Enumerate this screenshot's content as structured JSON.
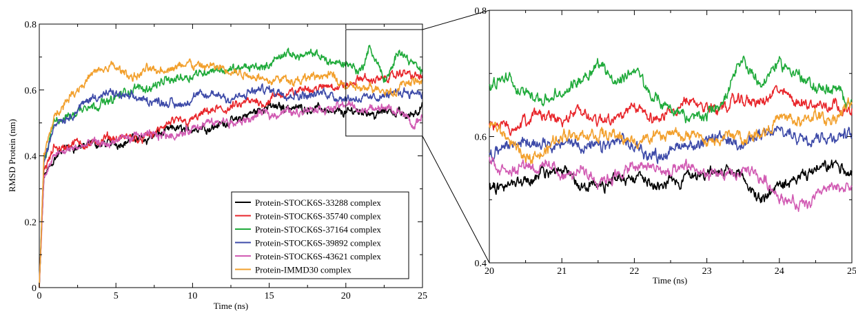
{
  "figure": {
    "left_panel": {
      "xlabel": "Time (ns)",
      "ylabel": "RMSD Protein (nm)",
      "xlim": [
        0,
        25
      ],
      "ylim": [
        0,
        0.8
      ],
      "xticks": [
        "0",
        "5",
        "10",
        "15",
        "20",
        "25"
      ],
      "yticks": [
        "0",
        "0.2",
        "0.4",
        "0.6",
        "0.8"
      ]
    },
    "right_panel": {
      "xlabel": "Time (ns)",
      "xlim": [
        20,
        25
      ],
      "ylim": [
        0.4,
        0.8
      ],
      "xticks": [
        "20",
        "21",
        "22",
        "23",
        "24",
        "25"
      ],
      "yticks": [
        "0.4",
        "0.6",
        "0.8"
      ]
    },
    "zoom_box": {
      "x_range": [
        20,
        25
      ],
      "y_range": [
        0.46,
        0.8
      ]
    },
    "legend_placement": "lower-right"
  },
  "chart_data": [
    {
      "type": "line",
      "xlabel": "Time (ns)",
      "ylabel": "RMSD Protein (nm)",
      "xlim": [
        0,
        25
      ],
      "ylim": [
        0,
        0.8
      ],
      "grid": false,
      "legend_placement": "lower-right",
      "series": [
        {
          "name": "Protein-STOCK6S-33288 complex",
          "color": "#000000",
          "x": [
            0,
            0.3,
            1,
            2,
            3,
            4,
            5,
            7,
            9,
            11,
            13,
            15,
            17,
            19,
            20,
            21,
            22,
            23,
            24,
            25
          ],
          "y": [
            0,
            0.33,
            0.4,
            0.42,
            0.43,
            0.43,
            0.44,
            0.46,
            0.48,
            0.49,
            0.51,
            0.55,
            0.55,
            0.54,
            0.53,
            0.54,
            0.53,
            0.54,
            0.52,
            0.55
          ]
        },
        {
          "name": "Protein-STOCK6S-35740 complex",
          "color": "#e8262b",
          "x": [
            0,
            0.3,
            1,
            2,
            3,
            4,
            5,
            6,
            7,
            9,
            11,
            13,
            15,
            17,
            19,
            20,
            21,
            22,
            23,
            24,
            25
          ],
          "y": [
            0,
            0.35,
            0.42,
            0.43,
            0.44,
            0.44,
            0.45,
            0.45,
            0.46,
            0.5,
            0.53,
            0.55,
            0.57,
            0.6,
            0.61,
            0.61,
            0.63,
            0.63,
            0.64,
            0.65,
            0.64
          ]
        },
        {
          "name": "Protein-STOCK6S-37164 complex",
          "color": "#1faa3a",
          "x": [
            0,
            0.3,
            1,
            2,
            3,
            4,
            5,
            7,
            9,
            11,
            13,
            15,
            16,
            17,
            18,
            19,
            20,
            21,
            21.5,
            22,
            22.5,
            23,
            23.5,
            24,
            25
          ],
          "y": [
            0,
            0.38,
            0.5,
            0.52,
            0.55,
            0.56,
            0.58,
            0.61,
            0.64,
            0.66,
            0.66,
            0.68,
            0.7,
            0.71,
            0.7,
            0.69,
            0.68,
            0.66,
            0.72,
            0.69,
            0.63,
            0.66,
            0.72,
            0.7,
            0.66
          ]
        },
        {
          "name": "Protein-STOCK6S-39892 complex",
          "color": "#3d4aa8",
          "x": [
            0,
            0.3,
            1,
            2,
            3,
            4,
            5,
            7,
            9,
            11,
            13,
            15,
            17,
            19,
            20,
            21,
            22,
            23,
            24,
            25
          ],
          "y": [
            0,
            0.38,
            0.5,
            0.52,
            0.56,
            0.59,
            0.58,
            0.57,
            0.56,
            0.58,
            0.58,
            0.6,
            0.59,
            0.59,
            0.58,
            0.58,
            0.58,
            0.59,
            0.6,
            0.6
          ]
        },
        {
          "name": "Protein-STOCK6S-43621 complex",
          "color": "#d15bb3",
          "x": [
            0,
            0.3,
            1,
            2,
            3,
            4,
            5,
            7,
            9,
            11,
            13,
            15,
            17,
            19,
            20,
            21,
            22,
            23,
            24,
            24.3,
            25
          ],
          "y": [
            0,
            0.33,
            0.4,
            0.42,
            0.43,
            0.43,
            0.44,
            0.46,
            0.47,
            0.49,
            0.5,
            0.53,
            0.54,
            0.54,
            0.56,
            0.54,
            0.54,
            0.54,
            0.52,
            0.48,
            0.52
          ]
        },
        {
          "name": "Protein-IMMD30 complex",
          "color": "#f2a02d",
          "x": [
            0,
            0.3,
            1,
            2,
            3,
            4,
            5,
            6,
            7,
            9,
            11,
            13,
            15,
            17,
            19,
            20,
            21,
            22,
            23,
            24,
            25
          ],
          "y": [
            0,
            0.4,
            0.52,
            0.58,
            0.63,
            0.66,
            0.67,
            0.64,
            0.66,
            0.67,
            0.67,
            0.65,
            0.64,
            0.63,
            0.64,
            0.62,
            0.6,
            0.6,
            0.6,
            0.62,
            0.63
          ]
        }
      ]
    },
    {
      "type": "line",
      "xlabel": "Time (ns)",
      "xlim": [
        20,
        25
      ],
      "ylim": [
        0.4,
        0.8
      ],
      "grid": false,
      "series": [
        {
          "name": "Protein-STOCK6S-33288 complex",
          "color": "#000000",
          "x": [
            20,
            20.25,
            20.5,
            20.75,
            21,
            21.25,
            21.5,
            21.75,
            22,
            22.25,
            22.5,
            22.75,
            23,
            23.25,
            23.5,
            23.75,
            24,
            24.25,
            24.5,
            24.75,
            25
          ],
          "y": [
            0.52,
            0.53,
            0.53,
            0.54,
            0.54,
            0.53,
            0.52,
            0.53,
            0.54,
            0.53,
            0.53,
            0.54,
            0.55,
            0.54,
            0.53,
            0.5,
            0.52,
            0.53,
            0.54,
            0.55,
            0.55
          ]
        },
        {
          "name": "Protein-STOCK6S-35740 complex",
          "color": "#e8262b",
          "x": [
            20,
            20.25,
            20.5,
            20.75,
            21,
            21.25,
            21.5,
            21.75,
            22,
            22.25,
            22.5,
            22.75,
            23,
            23.25,
            23.5,
            23.75,
            24,
            24.25,
            24.5,
            24.75,
            25
          ],
          "y": [
            0.62,
            0.61,
            0.63,
            0.64,
            0.63,
            0.64,
            0.63,
            0.64,
            0.64,
            0.63,
            0.64,
            0.65,
            0.64,
            0.65,
            0.66,
            0.65,
            0.67,
            0.66,
            0.65,
            0.66,
            0.64
          ]
        },
        {
          "name": "Protein-STOCK6S-37164 complex",
          "color": "#1faa3a",
          "x": [
            20,
            20.25,
            20.5,
            20.75,
            21,
            21.25,
            21.5,
            21.75,
            22,
            22.25,
            22.5,
            22.75,
            23,
            23.25,
            23.5,
            23.75,
            24,
            24.25,
            24.5,
            24.75,
            25
          ],
          "y": [
            0.68,
            0.69,
            0.67,
            0.66,
            0.66,
            0.69,
            0.72,
            0.69,
            0.71,
            0.66,
            0.64,
            0.63,
            0.64,
            0.66,
            0.72,
            0.68,
            0.72,
            0.7,
            0.68,
            0.67,
            0.66
          ]
        },
        {
          "name": "Protein-STOCK6S-39892 complex",
          "color": "#3d4aa8",
          "x": [
            20,
            20.25,
            20.5,
            20.75,
            21,
            21.25,
            21.5,
            21.75,
            22,
            22.25,
            22.5,
            22.75,
            23,
            23.25,
            23.5,
            23.75,
            24,
            24.25,
            24.5,
            24.75,
            25
          ],
          "y": [
            0.57,
            0.58,
            0.59,
            0.6,
            0.59,
            0.59,
            0.58,
            0.59,
            0.58,
            0.57,
            0.58,
            0.59,
            0.59,
            0.6,
            0.59,
            0.6,
            0.61,
            0.6,
            0.61,
            0.6,
            0.6
          ]
        },
        {
          "name": "Protein-STOCK6S-43621 complex",
          "color": "#d15bb3",
          "x": [
            20,
            20.25,
            20.5,
            20.75,
            21,
            21.25,
            21.5,
            21.75,
            22,
            22.25,
            22.5,
            22.75,
            23,
            23.25,
            23.5,
            23.75,
            24,
            24.25,
            24.5,
            24.75,
            25
          ],
          "y": [
            0.56,
            0.55,
            0.56,
            0.55,
            0.54,
            0.54,
            0.53,
            0.54,
            0.55,
            0.55,
            0.54,
            0.55,
            0.54,
            0.54,
            0.54,
            0.53,
            0.51,
            0.49,
            0.51,
            0.52,
            0.52
          ]
        },
        {
          "name": "Protein-IMMD30 complex",
          "color": "#f2a02d",
          "x": [
            20,
            20.25,
            20.5,
            20.75,
            21,
            21.25,
            21.5,
            21.75,
            22,
            22.25,
            22.5,
            22.75,
            23,
            23.25,
            23.5,
            23.75,
            24,
            24.25,
            24.5,
            24.75,
            25
          ],
          "y": [
            0.62,
            0.6,
            0.56,
            0.58,
            0.6,
            0.61,
            0.61,
            0.6,
            0.59,
            0.6,
            0.61,
            0.6,
            0.59,
            0.6,
            0.6,
            0.61,
            0.63,
            0.62,
            0.63,
            0.63,
            0.65
          ]
        }
      ]
    }
  ]
}
